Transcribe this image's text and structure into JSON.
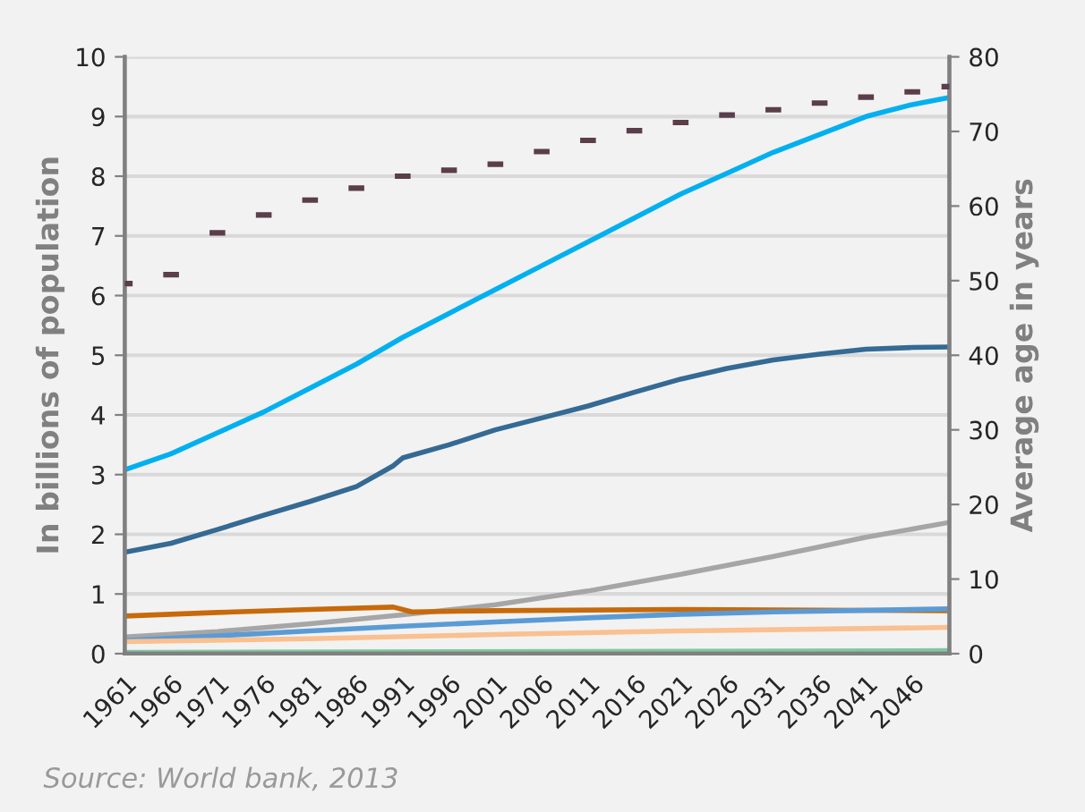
{
  "chart_data": {
    "type": "line",
    "ylabel": "In billions of population",
    "y2label": "Average age in years",
    "xlim": [
      1961,
      2050
    ],
    "xticks": [
      1961,
      1966,
      1971,
      1976,
      1981,
      1986,
      1991,
      1996,
      2001,
      2006,
      2011,
      2016,
      2021,
      2026,
      2031,
      2036,
      2041,
      2046
    ],
    "ylim": [
      0,
      10
    ],
    "yticks": [
      0,
      1,
      2,
      3,
      4,
      5,
      6,
      7,
      8,
      9,
      10
    ],
    "y2lim": [
      0,
      80
    ],
    "y2ticks": [
      0,
      10,
      20,
      30,
      40,
      50,
      60,
      70,
      80
    ],
    "grid": "y",
    "legend": false,
    "annotations": [
      "Source: World bank, 2013"
    ],
    "series": [
      {
        "color": "#00b0f0",
        "x": [
          1961,
          1966,
          1971,
          1976,
          1981,
          1986,
          1991,
          1996,
          2001,
          2006,
          2011,
          2016,
          2021,
          2026,
          2031,
          2036,
          2041,
          2046,
          2050
        ],
        "values": [
          3.08,
          3.35,
          3.7,
          4.05,
          4.45,
          4.85,
          5.3,
          5.7,
          6.1,
          6.5,
          6.9,
          7.3,
          7.7,
          8.05,
          8.4,
          8.7,
          9.0,
          9.2,
          9.32
        ]
      },
      {
        "color": "#346a94",
        "x": [
          1961,
          1966,
          1971,
          1976,
          1981,
          1986,
          1990,
          1991,
          1996,
          2001,
          2006,
          2011,
          2016,
          2021,
          2026,
          2031,
          2036,
          2041,
          2046,
          2050
        ],
        "values": [
          1.7,
          1.85,
          2.08,
          2.32,
          2.55,
          2.8,
          3.15,
          3.28,
          3.5,
          3.75,
          3.95,
          4.15,
          4.38,
          4.6,
          4.78,
          4.92,
          5.02,
          5.1,
          5.13,
          5.14
        ]
      },
      {
        "color": "#a6a6a6",
        "x": [
          1961,
          1971,
          1981,
          1991,
          2001,
          2011,
          2021,
          2031,
          2041,
          2050
        ],
        "values": [
          0.28,
          0.37,
          0.5,
          0.65,
          0.82,
          1.05,
          1.33,
          1.63,
          1.95,
          2.2
        ]
      },
      {
        "color": "#c8690a",
        "x": [
          1961,
          1971,
          1981,
          1990,
          1992,
          2001,
          2021,
          2050
        ],
        "values": [
          0.63,
          0.69,
          0.74,
          0.78,
          0.7,
          0.72,
          0.74,
          0.72
        ]
      },
      {
        "color": "#5b9bd5",
        "x": [
          1961,
          1971,
          1981,
          1991,
          2001,
          2011,
          2021,
          2031,
          2050
        ],
        "values": [
          0.22,
          0.3,
          0.38,
          0.46,
          0.53,
          0.6,
          0.66,
          0.7,
          0.75
        ]
      },
      {
        "color": "#fac090",
        "x": [
          1961,
          1981,
          2001,
          2021,
          2050
        ],
        "values": [
          0.2,
          0.25,
          0.32,
          0.38,
          0.44
        ]
      },
      {
        "color": "#7fc8a0",
        "x": [
          1961,
          2050
        ],
        "values": [
          0.02,
          0.05
        ]
      },
      {
        "type": "scatter",
        "axis": "y2",
        "marker": "square",
        "color": "#5a3e4a",
        "x": [
          1961,
          1966,
          1971,
          1976,
          1981,
          1986,
          1991,
          1996,
          2001,
          2006,
          2011,
          2016,
          2021,
          2026,
          2031,
          2036,
          2041,
          2046,
          2050
        ],
        "values": [
          49.6,
          50.8,
          56.4,
          58.8,
          60.8,
          62.4,
          64,
          64.8,
          65.6,
          67.3,
          68.8,
          70.1,
          71.2,
          72.2,
          72.9,
          73.8,
          74.6,
          75.3,
          76
        ]
      }
    ]
  }
}
